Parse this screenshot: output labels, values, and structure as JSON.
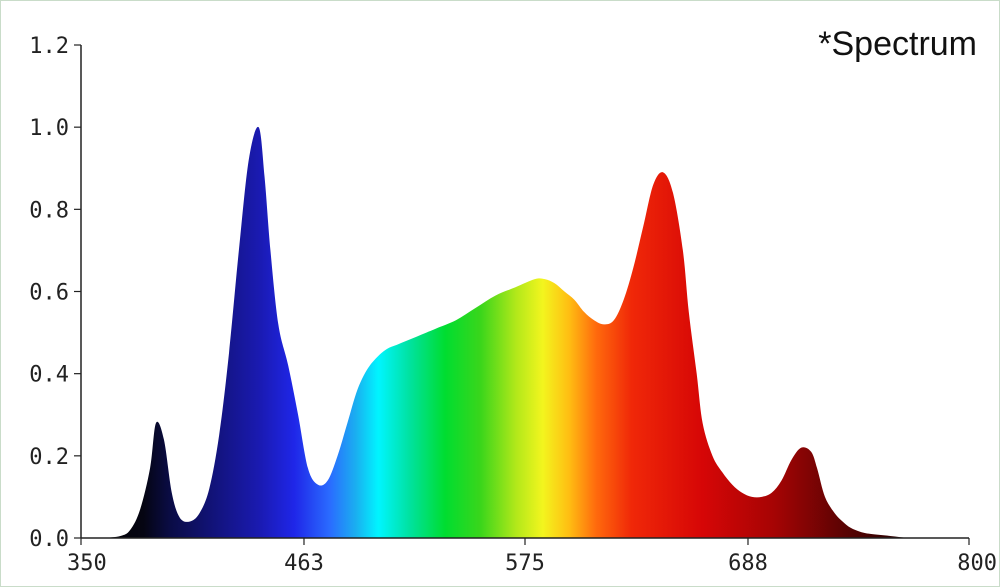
{
  "chart_data": {
    "type": "area",
    "title": "*Spectrum",
    "xlabel": "",
    "ylabel": "",
    "xlim": [
      350,
      800
    ],
    "ylim": [
      0,
      1.2
    ],
    "x_ticks": [
      "350",
      "463",
      "575",
      "688",
      "800"
    ],
    "y_ticks": [
      "0.0",
      "0.2",
      "0.4",
      "0.6",
      "0.8",
      "1.0",
      "1.2"
    ],
    "grid": false,
    "legend": "none",
    "series": [
      {
        "x": [
          350,
          360,
          370,
          375,
          380,
          385,
          388,
          392,
          396,
          400,
          405,
          410,
          415,
          420,
          425,
          430,
          435,
          440,
          443,
          446,
          450,
          455,
          460,
          465,
          470,
          475,
          480,
          485,
          490,
          495,
          500,
          505,
          510,
          515,
          520,
          525,
          530,
          540,
          550,
          560,
          570,
          580,
          585,
          590,
          595,
          600,
          605,
          610,
          615,
          620,
          625,
          630,
          635,
          640,
          645,
          650,
          655,
          658,
          662,
          665,
          670,
          675,
          680,
          685,
          690,
          695,
          700,
          705,
          710,
          715,
          720,
          723,
          727,
          732,
          736,
          740,
          745,
          750,
          760,
          770,
          780,
          790,
          800
        ],
        "y": [
          0.0,
          0.0,
          0.005,
          0.02,
          0.07,
          0.17,
          0.28,
          0.24,
          0.11,
          0.05,
          0.04,
          0.06,
          0.12,
          0.25,
          0.45,
          0.7,
          0.92,
          1.0,
          0.88,
          0.7,
          0.52,
          0.42,
          0.3,
          0.17,
          0.13,
          0.14,
          0.2,
          0.28,
          0.36,
          0.41,
          0.44,
          0.46,
          0.47,
          0.48,
          0.49,
          0.5,
          0.51,
          0.53,
          0.56,
          0.59,
          0.61,
          0.63,
          0.63,
          0.62,
          0.6,
          0.58,
          0.55,
          0.53,
          0.52,
          0.53,
          0.58,
          0.66,
          0.76,
          0.86,
          0.89,
          0.84,
          0.7,
          0.55,
          0.4,
          0.28,
          0.2,
          0.16,
          0.13,
          0.11,
          0.1,
          0.1,
          0.11,
          0.14,
          0.19,
          0.22,
          0.21,
          0.17,
          0.1,
          0.06,
          0.04,
          0.025,
          0.015,
          0.01,
          0.005,
          0.0,
          0.0,
          0.0,
          0.0
        ]
      }
    ]
  }
}
